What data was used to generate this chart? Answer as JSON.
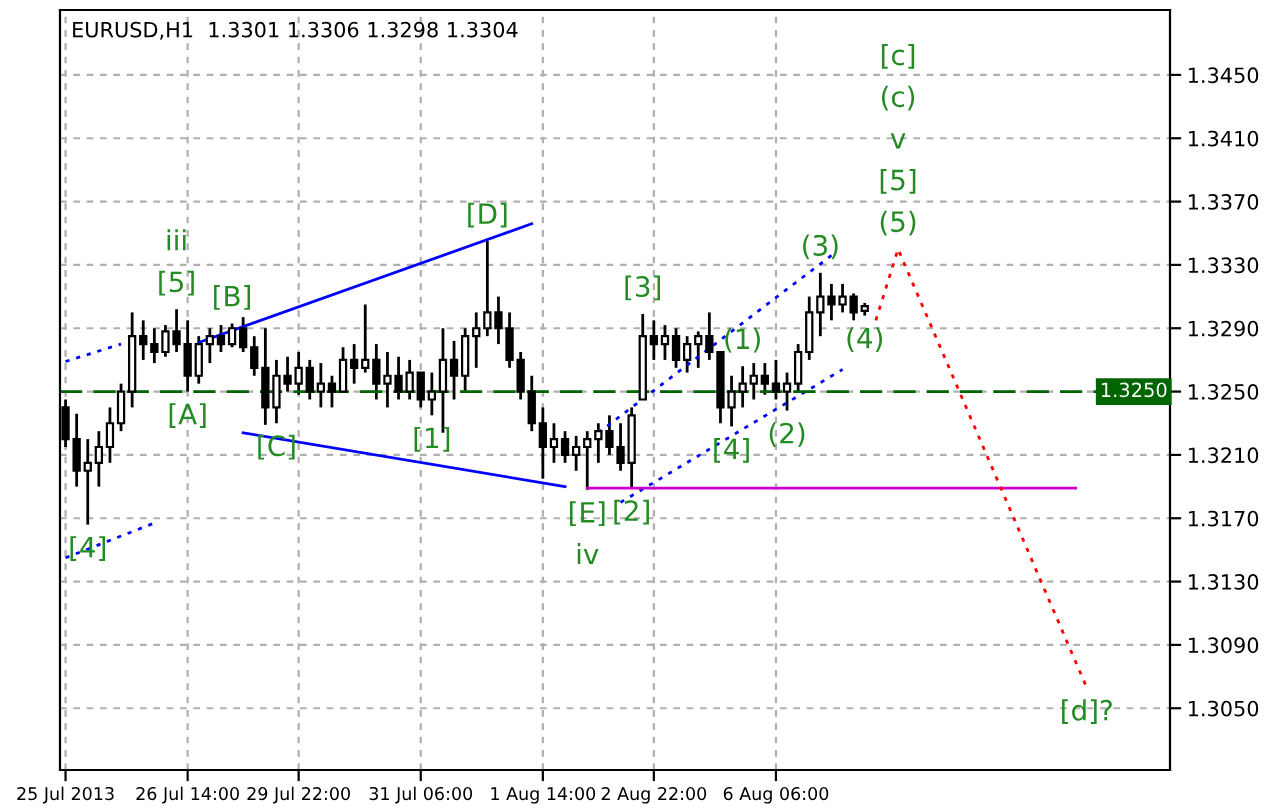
{
  "chart_data": {
    "type": "candlestick",
    "title": "EURUSD,H1  1.3301 1.3306 1.3298 1.3304",
    "categories": [
      "25 Jul 2013",
      null,
      null,
      null,
      null,
      null,
      null,
      null,
      null,
      null,
      null,
      "26 Jul 14:00",
      null,
      null,
      null,
      null,
      null,
      null,
      null,
      null,
      null,
      "29 Jul 22:00",
      null,
      null,
      null,
      null,
      null,
      null,
      null,
      null,
      null,
      null,
      "31 Jul 06:00",
      null,
      null,
      null,
      null,
      null,
      null,
      null,
      null,
      null,
      null,
      "1 Aug 14:00",
      null,
      null,
      null,
      null,
      null,
      null,
      null,
      null,
      null,
      "2 Aug 22:00",
      null,
      null,
      null,
      null,
      null,
      null,
      null,
      null,
      null,
      null,
      "6 Aug 06:00",
      null,
      null,
      null,
      null,
      null,
      null,
      null,
      null,
      null,
      null,
      null,
      null,
      null,
      null,
      null,
      null,
      null,
      null,
      null,
      null,
      null,
      null,
      null,
      null,
      null,
      null,
      null,
      null,
      null,
      null,
      null,
      null,
      null,
      null,
      null
    ],
    "ohlc": [
      [
        1.324,
        1.3245,
        1.3215,
        1.322
      ],
      [
        1.322,
        1.3236,
        1.319,
        1.32
      ],
      [
        1.32,
        1.322,
        1.3166,
        1.3205
      ],
      [
        1.3205,
        1.3225,
        1.319,
        1.3215
      ],
      [
        1.3215,
        1.324,
        1.3205,
        1.323
      ],
      [
        1.323,
        1.3255,
        1.3225,
        1.325
      ],
      [
        1.325,
        1.33,
        1.324,
        1.3285
      ],
      [
        1.3285,
        1.3295,
        1.327,
        1.328
      ],
      [
        1.328,
        1.329,
        1.3268,
        1.3275
      ],
      [
        1.3275,
        1.3292,
        1.3272,
        1.3288
      ],
      [
        1.3288,
        1.3302,
        1.3275,
        1.328
      ],
      [
        1.328,
        1.3295,
        1.325,
        1.326
      ],
      [
        1.326,
        1.3285,
        1.3255,
        1.328
      ],
      [
        1.328,
        1.329,
        1.3268,
        1.3285
      ],
      [
        1.3285,
        1.3292,
        1.3275,
        1.328
      ],
      [
        1.328,
        1.3293,
        1.3278,
        1.329
      ],
      [
        1.329,
        1.3297,
        1.3275,
        1.3278
      ],
      [
        1.3278,
        1.3285,
        1.326,
        1.3265
      ],
      [
        1.3265,
        1.329,
        1.3229,
        1.324
      ],
      [
        1.324,
        1.327,
        1.323,
        1.326
      ],
      [
        1.326,
        1.3272,
        1.325,
        1.3255
      ],
      [
        1.3255,
        1.3275,
        1.3248,
        1.3265
      ],
      [
        1.3265,
        1.327,
        1.3245,
        1.325
      ],
      [
        1.325,
        1.3268,
        1.324,
        1.3255
      ],
      [
        1.3255,
        1.326,
        1.324,
        1.325
      ],
      [
        1.325,
        1.3278,
        1.325,
        1.327
      ],
      [
        1.327,
        1.328,
        1.3255,
        1.3265
      ],
      [
        1.3265,
        1.3305,
        1.3262,
        1.327
      ],
      [
        1.327,
        1.328,
        1.3245,
        1.3255
      ],
      [
        1.3255,
        1.3275,
        1.324,
        1.326
      ],
      [
        1.326,
        1.3272,
        1.3245,
        1.325
      ],
      [
        1.325,
        1.327,
        1.3245,
        1.3262
      ],
      [
        1.3262,
        1.3262,
        1.324,
        1.3245
      ],
      [
        1.3245,
        1.3262,
        1.3235,
        1.325
      ],
      [
        1.325,
        1.329,
        1.3224,
        1.327
      ],
      [
        1.327,
        1.3282,
        1.3245,
        1.326
      ],
      [
        1.326,
        1.329,
        1.325,
        1.3285
      ],
      [
        1.3285,
        1.33,
        1.3265,
        1.329
      ],
      [
        1.329,
        1.3345,
        1.3285,
        1.33
      ],
      [
        1.33,
        1.331,
        1.328,
        1.329
      ],
      [
        1.329,
        1.33,
        1.3265,
        1.327
      ],
      [
        1.327,
        1.3275,
        1.3245,
        1.325
      ],
      [
        1.325,
        1.326,
        1.3225,
        1.323
      ],
      [
        1.323,
        1.324,
        1.3195,
        1.3215
      ],
      [
        1.3215,
        1.323,
        1.3205,
        1.322
      ],
      [
        1.322,
        1.3225,
        1.3205,
        1.321
      ],
      [
        1.321,
        1.3222,
        1.32,
        1.3215
      ],
      [
        1.3215,
        1.3225,
        1.3188,
        1.322
      ],
      [
        1.322,
        1.323,
        1.3205,
        1.3225
      ],
      [
        1.3225,
        1.3235,
        1.321,
        1.3215
      ],
      [
        1.3215,
        1.323,
        1.32,
        1.3205
      ],
      [
        1.3205,
        1.324,
        1.3189,
        1.3235
      ],
      [
        1.3245,
        1.3299,
        1.3245,
        1.3285
      ],
      [
        1.3285,
        1.3295,
        1.327,
        1.328
      ],
      [
        1.328,
        1.3292,
        1.327,
        1.3285
      ],
      [
        1.3285,
        1.329,
        1.3265,
        1.327
      ],
      [
        1.327,
        1.3285,
        1.3262,
        1.328
      ],
      [
        1.328,
        1.3288,
        1.3265,
        1.3285
      ],
      [
        1.3285,
        1.33,
        1.327,
        1.3275
      ],
      [
        1.3275,
        1.3275,
        1.323,
        1.324
      ],
      [
        1.324,
        1.326,
        1.3228,
        1.325
      ],
      [
        1.325,
        1.3266,
        1.324,
        1.3255
      ],
      [
        1.3255,
        1.3268,
        1.3245,
        1.326
      ],
      [
        1.326,
        1.3268,
        1.3248,
        1.3255
      ],
      [
        1.3255,
        1.327,
        1.3245,
        1.325
      ],
      [
        1.325,
        1.3262,
        1.3238,
        1.3255
      ],
      [
        1.3255,
        1.328,
        1.325,
        1.3275
      ],
      [
        1.3275,
        1.331,
        1.327,
        1.33
      ],
      [
        1.33,
        1.3325,
        1.3285,
        1.331
      ],
      [
        1.331,
        1.3318,
        1.3295,
        1.3305
      ],
      [
        1.3305,
        1.3318,
        1.33,
        1.331
      ],
      [
        1.331,
        1.3312,
        1.3295,
        1.33
      ],
      [
        1.3301,
        1.3306,
        1.3298,
        1.3304
      ],
      null,
      null,
      null,
      null,
      null,
      null,
      null,
      null,
      null,
      null,
      null,
      null,
      null,
      null,
      null,
      null,
      null,
      null,
      null,
      null,
      null,
      null,
      null,
      null,
      null,
      null,
      null
    ],
    "color": "#000000",
    "series": [
      {
        "type": "line",
        "values": [
          1.3269,
          null,
          null,
          null,
          null,
          1.328,
          null,
          null,
          null,
          null,
          null,
          null,
          null,
          null,
          null,
          null,
          null,
          null,
          null,
          null,
          null,
          null,
          null,
          null,
          null,
          null,
          null,
          null,
          null,
          null,
          null,
          null,
          null,
          null,
          null,
          null,
          null,
          null,
          null,
          null,
          null,
          null,
          null,
          null,
          null,
          null,
          null,
          null,
          null,
          null,
          null,
          null,
          null,
          null,
          null,
          null,
          null,
          null,
          null,
          null,
          null,
          null,
          null,
          null,
          null,
          null,
          null,
          null,
          null,
          null,
          null,
          null,
          null,
          null,
          null,
          null,
          null,
          null,
          null,
          null,
          null,
          null,
          null,
          null,
          null,
          null,
          null,
          null,
          null,
          null,
          null,
          null,
          null,
          null,
          null,
          null,
          null,
          null,
          null,
          null
        ],
        "color": "#0000ff",
        "line_style": "dotted"
      },
      {
        "type": "line",
        "values": [
          null,
          null,
          null,
          null,
          null,
          null,
          null,
          null,
          null,
          null,
          null,
          null,
          1.3281,
          null,
          null,
          null,
          null,
          null,
          null,
          null,
          null,
          null,
          null,
          null,
          null,
          null,
          null,
          null,
          null,
          null,
          null,
          null,
          null,
          null,
          null,
          null,
          null,
          null,
          null,
          null,
          null,
          null,
          1.3356,
          null,
          null,
          null,
          null,
          null,
          null,
          null,
          null,
          null,
          null,
          null,
          null,
          null,
          null,
          null,
          null,
          null,
          null,
          null,
          null,
          null,
          null,
          null,
          null,
          null,
          null,
          null,
          null,
          null,
          null,
          null,
          null,
          null,
          null,
          null,
          null,
          null,
          null,
          null,
          null,
          null,
          null,
          null,
          null,
          null,
          null,
          null,
          null,
          null,
          null,
          null,
          null,
          null,
          null,
          null,
          null,
          null
        ],
        "color": "#0000ff",
        "line_style": "solid"
      },
      {
        "type": "line",
        "values": [
          1.3145,
          null,
          null,
          null,
          null,
          null,
          null,
          null,
          1.3167,
          null,
          null,
          null,
          null,
          null,
          null,
          null,
          null,
          null,
          null,
          null,
          null,
          null,
          null,
          null,
          null,
          null,
          null,
          null,
          null,
          null,
          null,
          null,
          null,
          null,
          null,
          null,
          null,
          null,
          null,
          null,
          null,
          null,
          null,
          null,
          null,
          null,
          null,
          null,
          null,
          null,
          null,
          null,
          null,
          null,
          null,
          null,
          null,
          null,
          null,
          null,
          null,
          null,
          null,
          null,
          null,
          null,
          null,
          null,
          null,
          null,
          null,
          null,
          null,
          null,
          null,
          null,
          null,
          null,
          null,
          null,
          null,
          null,
          null,
          null,
          null,
          null,
          null,
          null,
          null,
          null,
          null,
          null,
          null,
          null,
          null,
          null,
          null,
          null,
          null,
          null
        ],
        "color": "#0000ff",
        "line_style": "dotted"
      },
      {
        "type": "line",
        "values": [
          null,
          null,
          null,
          null,
          null,
          null,
          null,
          null,
          null,
          null,
          null,
          null,
          null,
          null,
          null,
          null,
          1.3224,
          null,
          null,
          null,
          null,
          null,
          null,
          null,
          null,
          null,
          null,
          null,
          null,
          null,
          null,
          null,
          null,
          null,
          null,
          null,
          null,
          null,
          null,
          null,
          null,
          null,
          null,
          null,
          null,
          1.319,
          null,
          null,
          null,
          null,
          null,
          null,
          null,
          null,
          null,
          null,
          null,
          null,
          null,
          null,
          null,
          null,
          null,
          null,
          null,
          null,
          null,
          null,
          null,
          null,
          null,
          null,
          null,
          null,
          null,
          null,
          null,
          null,
          null,
          null,
          null,
          null,
          null,
          null,
          null,
          null,
          null,
          null,
          null,
          null,
          null,
          null,
          null,
          null,
          null,
          null,
          null,
          null,
          null,
          null
        ],
        "color": "#0000ff",
        "line_style": "solid"
      },
      {
        "type": "line",
        "values": [
          null,
          null,
          null,
          null,
          null,
          null,
          null,
          null,
          null,
          null,
          null,
          null,
          null,
          null,
          null,
          null,
          null,
          null,
          null,
          null,
          null,
          null,
          null,
          null,
          null,
          null,
          null,
          null,
          null,
          null,
          null,
          null,
          null,
          null,
          null,
          null,
          null,
          null,
          null,
          null,
          null,
          null,
          null,
          null,
          null,
          null,
          null,
          null,
          1.3224,
          null,
          null,
          null,
          null,
          null,
          null,
          null,
          null,
          null,
          null,
          null,
          null,
          null,
          null,
          null,
          null,
          null,
          null,
          null,
          null,
          1.3336,
          null,
          null,
          null,
          null,
          null,
          null,
          null,
          null,
          null,
          null,
          null,
          null,
          null,
          null,
          null,
          null,
          null,
          null,
          null,
          null,
          null,
          null,
          null,
          null,
          null,
          null,
          null,
          null,
          null,
          null
        ],
        "color": "#0000ff",
        "line_style": "dotted"
      },
      {
        "type": "line",
        "values": [
          null,
          null,
          null,
          null,
          null,
          null,
          null,
          null,
          null,
          null,
          null,
          null,
          null,
          null,
          null,
          null,
          null,
          null,
          null,
          null,
          null,
          null,
          null,
          null,
          null,
          null,
          null,
          null,
          null,
          null,
          null,
          null,
          null,
          null,
          null,
          null,
          null,
          null,
          null,
          null,
          null,
          null,
          null,
          null,
          null,
          null,
          null,
          null,
          null,
          null,
          1.318,
          null,
          null,
          null,
          null,
          null,
          null,
          null,
          null,
          null,
          null,
          null,
          null,
          null,
          null,
          null,
          null,
          null,
          null,
          null,
          1.3264,
          null,
          null,
          null,
          null,
          null,
          null,
          null,
          null,
          null,
          null,
          null,
          null,
          null,
          null,
          null,
          null,
          null,
          null,
          null,
          null,
          null,
          null,
          null,
          null,
          null,
          null,
          null,
          null,
          null
        ],
        "color": "#0000ff",
        "line_style": "dotted"
      },
      {
        "type": "line",
        "values": [
          null,
          null,
          null,
          null,
          null,
          null,
          null,
          null,
          null,
          null,
          null,
          null,
          null,
          null,
          null,
          null,
          null,
          null,
          null,
          null,
          null,
          null,
          null,
          null,
          null,
          null,
          null,
          null,
          null,
          null,
          null,
          null,
          null,
          null,
          null,
          null,
          null,
          null,
          null,
          null,
          null,
          null,
          null,
          null,
          null,
          null,
          null,
          1.3189,
          null,
          null,
          null,
          null,
          null,
          null,
          null,
          null,
          null,
          null,
          null,
          null,
          null,
          null,
          null,
          null,
          null,
          null,
          null,
          null,
          null,
          null,
          null,
          null,
          null,
          null,
          null,
          null,
          null,
          null,
          null,
          null,
          null,
          null,
          null,
          null,
          null,
          null,
          null,
          null,
          null,
          null,
          null,
          1.3189,
          null,
          null,
          null,
          null,
          null,
          null,
          null,
          null
        ],
        "color": "#cc00cc",
        "line_style": "solid"
      },
      {
        "type": "line",
        "values": [
          null,
          null,
          null,
          null,
          null,
          null,
          null,
          null,
          null,
          null,
          null,
          null,
          null,
          null,
          null,
          null,
          null,
          null,
          null,
          null,
          null,
          null,
          null,
          null,
          null,
          null,
          null,
          null,
          null,
          null,
          null,
          null,
          null,
          null,
          null,
          null,
          null,
          null,
          null,
          null,
          null,
          null,
          null,
          null,
          null,
          null,
          null,
          null,
          null,
          null,
          null,
          null,
          null,
          null,
          null,
          null,
          null,
          null,
          null,
          null,
          null,
          null,
          null,
          null,
          null,
          null,
          null,
          null,
          null,
          null,
          null,
          null,
          null,
          1.3295,
          null,
          1.334,
          null,
          null,
          null,
          null,
          null,
          null,
          null,
          null,
          null,
          null,
          null,
          null,
          null,
          null,
          null,
          null,
          1.3063,
          null,
          null,
          null,
          null,
          null,
          null,
          null
        ],
        "color": "#ff0000",
        "line_style": "dotted"
      }
    ],
    "ref_lines": [
      {
        "axis": "y",
        "value": 1.325,
        "label": "1.3250",
        "color": "#006400",
        "line_style": "dashed"
      }
    ],
    "annotations": [
      {
        "text": "[5]",
        "y": 1.3302
      },
      {
        "text": "iii",
        "y": 1.3302
      },
      {
        "text": "[B]",
        "y": 1.3293
      },
      {
        "text": "[A]",
        "y": 1.325
      },
      {
        "text": "[C]",
        "y": 1.323
      },
      {
        "text": "[D]",
        "y": 1.3345
      },
      {
        "text": "[3]",
        "y": 1.3299
      },
      {
        "text": "[1]",
        "y": 1.3235
      },
      {
        "text": "[E]",
        "y": 1.3188
      },
      {
        "text": "iv",
        "y": 1.3188
      },
      {
        "text": "[2]",
        "y": 1.3189
      },
      {
        "text": "[4]",
        "y": 1.3166
      },
      {
        "text": "(1)",
        "y": 1.3266
      },
      {
        "text": "[4]",
        "y": 1.3228
      },
      {
        "text": "(2)",
        "y": 1.3238
      },
      {
        "text": "(3)",
        "y": 1.3325
      },
      {
        "text": "(4)",
        "y": 1.3298
      },
      {
        "text": "(5)",
        "y": 1.334
      },
      {
        "text": "[5]",
        "y": 1.334
      },
      "v",
      "(c)",
      "[c]",
      {
        "text": "[d]?",
        "y": 1.3063
      }
    ],
    "ylim": [
      1.3011,
      1.3491
    ],
    "yticks": [
      {
        "value": 1.305,
        "label": "1.3050"
      },
      {
        "value": 1.309,
        "label": "1.3090"
      },
      {
        "value": 1.313,
        "label": "1.3130"
      },
      {
        "value": 1.317,
        "label": "1.3170"
      },
      {
        "value": 1.321,
        "label": "1.3210"
      },
      {
        "value": 1.325,
        "label": "1.3250"
      },
      {
        "value": 1.329,
        "label": "1.3290"
      },
      {
        "value": 1.333,
        "label": "1.3330"
      },
      {
        "value": 1.337,
        "label": "1.3370"
      },
      {
        "value": 1.341,
        "label": "1.3410"
      },
      {
        "value": 1.345,
        "label": "1.3450"
      }
    ],
    "grid": true
  }
}
